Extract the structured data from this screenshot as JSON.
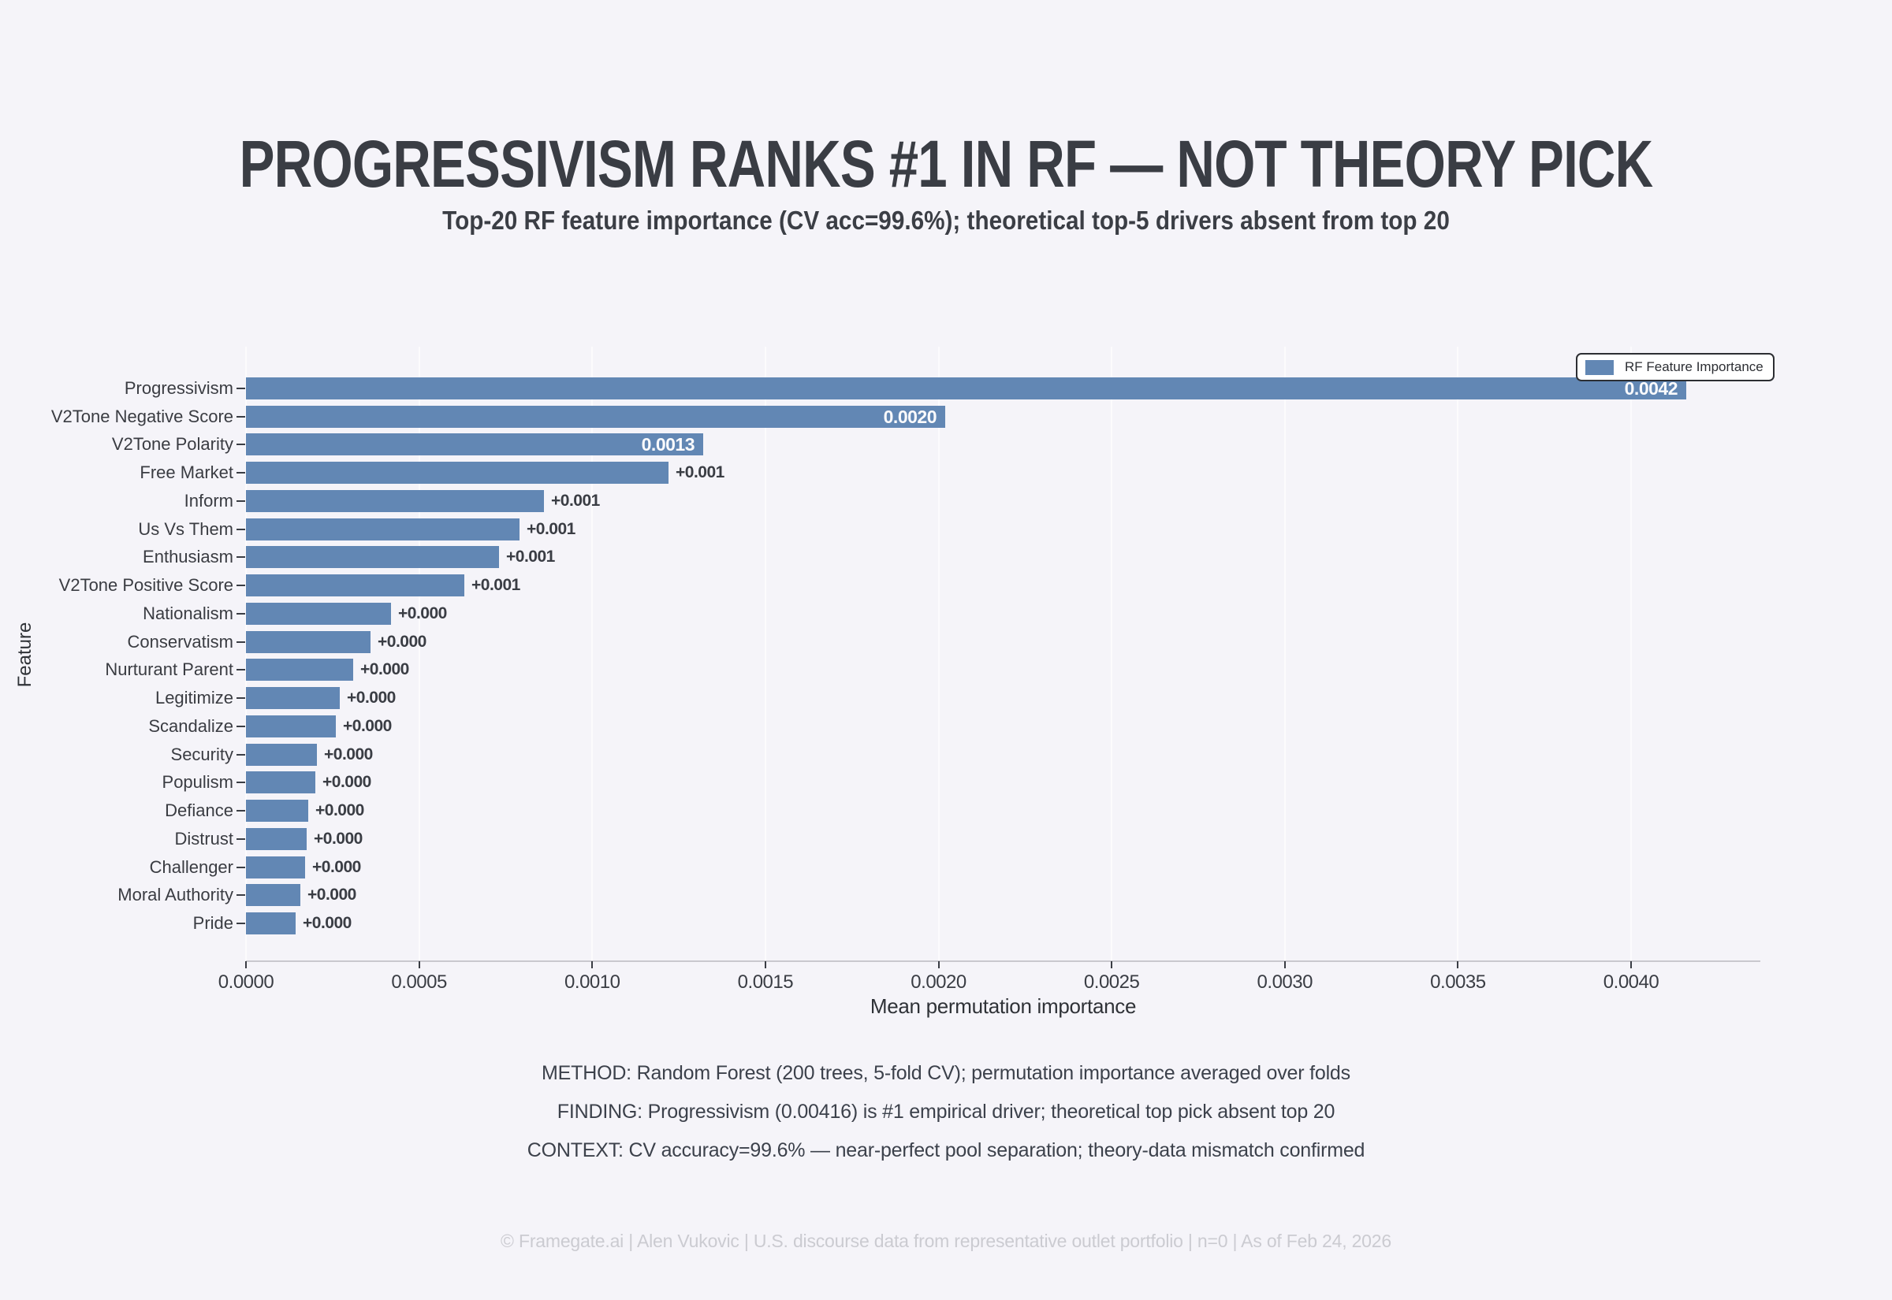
{
  "header": {
    "title": "PROGRESSIVISM RANKS #1 IN RF — NOT THEORY PICK",
    "subtitle": "Top-20 RF feature importance (CV acc=99.6%); theoretical top-5 drivers absent from top 20"
  },
  "chart_data": {
    "type": "bar",
    "orientation": "horizontal",
    "xlabel": "Mean permutation importance",
    "ylabel": "Feature",
    "xlim": [
      0,
      0.00437
    ],
    "grid": true,
    "xticks": [
      "0.0000",
      "0.0005",
      "0.0010",
      "0.0015",
      "0.0020",
      "0.0025",
      "0.0030",
      "0.0035",
      "0.0040"
    ],
    "legend": {
      "label": "RF Feature Importance",
      "position": "upper right",
      "swatch_color": "#6287b4"
    },
    "bar_color": "#6287b4",
    "bars": [
      {
        "label": "Progressivism",
        "value": 0.00416,
        "value_label": "0.0042",
        "label_inside": true
      },
      {
        "label": "V2Tone Negative Score",
        "value": 0.00202,
        "value_label": "0.0020",
        "label_inside": true
      },
      {
        "label": "V2Tone Polarity",
        "value": 0.00132,
        "value_label": "0.0013",
        "label_inside": true
      },
      {
        "label": "Free Market",
        "value": 0.00122,
        "value_label": "+0.001",
        "label_inside": false
      },
      {
        "label": "Inform",
        "value": 0.00086,
        "value_label": "+0.001",
        "label_inside": false
      },
      {
        "label": "Us Vs Them",
        "value": 0.00079,
        "value_label": "+0.001",
        "label_inside": false
      },
      {
        "label": "Enthusiasm",
        "value": 0.00073,
        "value_label": "+0.001",
        "label_inside": false
      },
      {
        "label": "V2Tone Positive Score",
        "value": 0.00063,
        "value_label": "+0.001",
        "label_inside": false
      },
      {
        "label": "Nationalism",
        "value": 0.00042,
        "value_label": "+0.000",
        "label_inside": false
      },
      {
        "label": "Conservatism",
        "value": 0.00036,
        "value_label": "+0.000",
        "label_inside": false
      },
      {
        "label": "Nurturant Parent",
        "value": 0.00031,
        "value_label": "+0.000",
        "label_inside": false
      },
      {
        "label": "Legitimize",
        "value": 0.00027,
        "value_label": "+0.000",
        "label_inside": false
      },
      {
        "label": "Scandalize",
        "value": 0.00026,
        "value_label": "+0.000",
        "label_inside": false
      },
      {
        "label": "Security",
        "value": 0.000205,
        "value_label": "+0.000",
        "label_inside": false
      },
      {
        "label": "Populism",
        "value": 0.0002,
        "value_label": "+0.000",
        "label_inside": false
      },
      {
        "label": "Defiance",
        "value": 0.00018,
        "value_label": "+0.000",
        "label_inside": false
      },
      {
        "label": "Distrust",
        "value": 0.000175,
        "value_label": "+0.000",
        "label_inside": false
      },
      {
        "label": "Challenger",
        "value": 0.00017,
        "value_label": "+0.000",
        "label_inside": false
      },
      {
        "label": "Moral Authority",
        "value": 0.000157,
        "value_label": "+0.000",
        "label_inside": false
      },
      {
        "label": "Pride",
        "value": 0.000143,
        "value_label": "+0.000",
        "label_inside": false
      }
    ]
  },
  "footer": {
    "method": "METHOD: Random Forest (200 trees, 5-fold CV); permutation importance averaged over folds",
    "finding": "FINDING: Progressivism (0.00416) is #1 empirical driver; theoretical top pick absent top 20",
    "context": "CONTEXT: CV accuracy=99.6% — near-perfect pool separation; theory-data mismatch confirmed",
    "copyright": "© Framegate.ai | Alen Vukovic | U.S. discourse data from representative outlet portfolio | n=0 | As of Feb 24, 2026"
  }
}
